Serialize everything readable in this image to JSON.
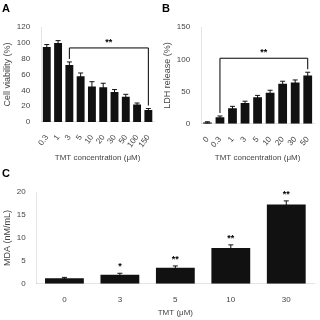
{
  "chart_data": [
    {
      "type": "bar",
      "title": "A",
      "categories": [
        "0.3",
        "1",
        "3",
        "5",
        "10",
        "20",
        "30",
        "50",
        "100",
        "150"
      ],
      "values": [
        95,
        100,
        72,
        58,
        45,
        44,
        38,
        32,
        22,
        15
      ],
      "errors": [
        3,
        3,
        4,
        4,
        6,
        5,
        3,
        3,
        2,
        2
      ],
      "xlabel": "TMT concentration (μM)",
      "ylabel": "Cell viability (%)",
      "ylim": [
        0,
        120
      ],
      "yticks": [
        0,
        20,
        40,
        60,
        80,
        100,
        120
      ],
      "color": "#111111",
      "grid": false,
      "annotations": [
        {
          "text": "**",
          "x": [
            "3",
            "150"
          ]
        }
      ]
    },
    {
      "type": "bar",
      "title": "B",
      "categories": [
        "0",
        "0.3",
        "1",
        "3",
        "5",
        "10",
        "20",
        "30",
        "50"
      ],
      "values": [
        2,
        10,
        24,
        32,
        41,
        48,
        62,
        64,
        75
      ],
      "errors": [
        1,
        2,
        3,
        3,
        3,
        4,
        4,
        4,
        5
      ],
      "xlabel": "TMT concentration (μM)",
      "ylabel": "LDH release (%)",
      "ylim": [
        0,
        150
      ],
      "yticks": [
        0,
        50,
        100,
        150
      ],
      "color": "#111111",
      "grid": false,
      "annotations": [
        {
          "text": "**",
          "x": [
            "0.3",
            "50"
          ]
        }
      ]
    },
    {
      "type": "bar",
      "title": "C",
      "categories": [
        "0",
        "3",
        "5",
        "10",
        "30"
      ],
      "values": [
        1.2,
        2.0,
        3.5,
        7.8,
        17.3
      ],
      "errors": [
        0.2,
        0.3,
        0.4,
        0.7,
        0.8
      ],
      "xlabel": "TMT (μM)",
      "ylabel": "MDA (nM/mL)",
      "ylim": [
        0,
        20
      ],
      "yticks": [
        0,
        5,
        10,
        15,
        20
      ],
      "color": "#111111",
      "grid": false,
      "annotations": [
        {
          "text": "*",
          "x": "3"
        },
        {
          "text": "**",
          "x": "5"
        },
        {
          "text": "**",
          "x": "10"
        },
        {
          "text": "**",
          "x": "30"
        }
      ]
    }
  ]
}
